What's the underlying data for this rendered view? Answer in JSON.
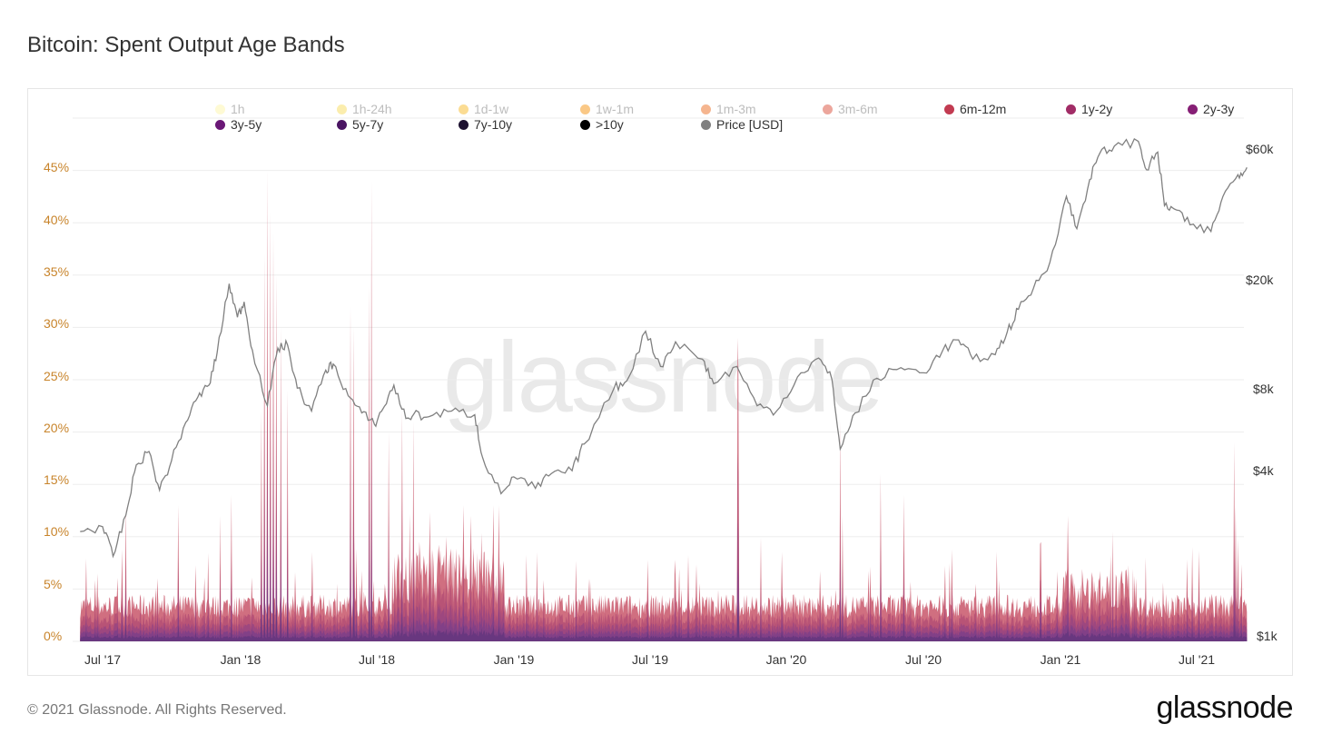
{
  "title": "Bitcoin: Spent Output Age Bands",
  "watermark": "glassnode",
  "footer": "© 2021 Glassnode. All Rights Reserved.",
  "brand": "glassnode",
  "legend": [
    {
      "label": "1h",
      "color": "#fdf6a9",
      "active": false
    },
    {
      "label": "1h-24h",
      "color": "#f8dc5c",
      "active": false
    },
    {
      "label": "1d-1w",
      "color": "#f7b928",
      "active": false
    },
    {
      "label": "1w-1m",
      "color": "#f6920e",
      "active": false
    },
    {
      "label": "1m-3m",
      "color": "#ec6b1f",
      "active": false
    },
    {
      "label": "3m-6m",
      "color": "#da4d3a",
      "active": false
    },
    {
      "label": "6m-12m",
      "color": "#c23b51",
      "active": true
    },
    {
      "label": "1y-2y",
      "color": "#a12c66",
      "active": true
    },
    {
      "label": "2y-3y",
      "color": "#861f75",
      "active": true
    },
    {
      "label": "3y-5y",
      "color": "#6a1876",
      "active": true
    },
    {
      "label": "5y-7y",
      "color": "#4a1562",
      "active": true
    },
    {
      "label": "7y-10y",
      "color": "#1d1130",
      "active": true
    },
    {
      "label": ">10y",
      "color": "#000000",
      "active": true
    },
    {
      "label": "Price [USD]",
      "color": "#808080",
      "active": true
    }
  ],
  "chart_data": {
    "type": "area",
    "title": "Bitcoin: Spent Output Age Bands",
    "x_ticks": [
      "Jul '17",
      "Jan '18",
      "Jul '18",
      "Jan '19",
      "Jul '19",
      "Jan '20",
      "Jul '20",
      "Jan '21",
      "Jul '21"
    ],
    "y_left_ticks": [
      "0%",
      "5%",
      "10%",
      "15%",
      "20%",
      "25%",
      "30%",
      "35%",
      "40%",
      "45%"
    ],
    "y_left_range": [
      0,
      50
    ],
    "y_right_ticks": [
      "$1k",
      "$4k",
      "$8k",
      "$20k",
      "$60k"
    ],
    "y_right_scale": "log",
    "grid": true,
    "legend_position": "top",
    "series": [
      {
        "name": "6m-12m",
        "color": "#c23b51"
      },
      {
        "name": "1y-2y",
        "color": "#a12c66"
      },
      {
        "name": "2y-3y",
        "color": "#861f75"
      },
      {
        "name": "3y-5y",
        "color": "#6a1876"
      },
      {
        "name": "5y-7y",
        "color": "#4a1562"
      },
      {
        "name": "7y-10y",
        "color": "#1d1130"
      },
      {
        "name": ">10y",
        "color": "#000000"
      }
    ],
    "price_usd": {
      "name": "Price [USD]",
      "color": "#808080",
      "points": [
        [
          "2017-06-01",
          2400
        ],
        [
          "2017-07-01",
          2500
        ],
        [
          "2017-07-15",
          1950
        ],
        [
          "2017-08-01",
          2750
        ],
        [
          "2017-08-15",
          4200
        ],
        [
          "2017-09-01",
          4700
        ],
        [
          "2017-09-15",
          3400
        ],
        [
          "2017-10-01",
          4350
        ],
        [
          "2017-10-20",
          6000
        ],
        [
          "2017-11-05",
          7400
        ],
        [
          "2017-11-20",
          8200
        ],
        [
          "2017-12-01",
          10800
        ],
        [
          "2017-12-17",
          19200
        ],
        [
          "2017-12-28",
          14500
        ],
        [
          "2018-01-06",
          16500
        ],
        [
          "2018-01-17",
          11000
        ],
        [
          "2018-02-06",
          6900
        ],
        [
          "2018-02-20",
          11200
        ],
        [
          "2018-03-05",
          11500
        ],
        [
          "2018-03-18",
          8000
        ],
        [
          "2018-04-06",
          6600
        ],
        [
          "2018-04-25",
          9300
        ],
        [
          "2018-05-05",
          9800
        ],
        [
          "2018-05-25",
          7500
        ],
        [
          "2018-06-12",
          6500
        ],
        [
          "2018-06-29",
          5900
        ],
        [
          "2018-07-10",
          6700
        ],
        [
          "2018-07-25",
          8200
        ],
        [
          "2018-08-10",
          6200
        ],
        [
          "2018-08-20",
          6400
        ],
        [
          "2018-09-10",
          6300
        ],
        [
          "2018-10-10",
          6600
        ],
        [
          "2018-11-10",
          6400
        ],
        [
          "2018-11-20",
          4500
        ],
        [
          "2018-12-15",
          3300
        ],
        [
          "2019-01-01",
          3800
        ],
        [
          "2019-01-30",
          3450
        ],
        [
          "2019-02-20",
          3900
        ],
        [
          "2019-03-20",
          4000
        ],
        [
          "2019-04-05",
          5000
        ],
        [
          "2019-05-15",
          8000
        ],
        [
          "2019-06-01",
          8500
        ],
        [
          "2019-06-26",
          12900
        ],
        [
          "2019-07-16",
          9600
        ],
        [
          "2019-08-05",
          11800
        ],
        [
          "2019-09-10",
          10200
        ],
        [
          "2019-09-25",
          8300
        ],
        [
          "2019-10-26",
          9600
        ],
        [
          "2019-11-22",
          6900
        ],
        [
          "2019-12-18",
          6600
        ],
        [
          "2020-01-15",
          8800
        ],
        [
          "2020-02-12",
          10300
        ],
        [
          "2020-03-01",
          8600
        ],
        [
          "2020-03-12",
          4800
        ],
        [
          "2020-04-01",
          6500
        ],
        [
          "2020-04-30",
          8700
        ],
        [
          "2020-06-01",
          9500
        ],
        [
          "2020-07-01",
          9100
        ],
        [
          "2020-07-27",
          11000
        ],
        [
          "2020-08-17",
          12000
        ],
        [
          "2020-09-05",
          10200
        ],
        [
          "2020-10-05",
          10600
        ],
        [
          "2020-10-21",
          12800
        ],
        [
          "2020-11-05",
          15500
        ],
        [
          "2020-11-25",
          18500
        ],
        [
          "2020-12-17",
          23000
        ],
        [
          "2021-01-08",
          40000
        ],
        [
          "2021-01-22",
          30500
        ],
        [
          "2021-02-08",
          46000
        ],
        [
          "2021-02-21",
          57000
        ],
        [
          "2021-03-13",
          61000
        ],
        [
          "2021-04-14",
          63500
        ],
        [
          "2021-04-25",
          50000
        ],
        [
          "2021-05-10",
          58000
        ],
        [
          "2021-05-19",
          37000
        ],
        [
          "2021-06-01",
          36000
        ],
        [
          "2021-06-22",
          31500
        ],
        [
          "2021-07-20",
          29800
        ],
        [
          "2021-08-05",
          40000
        ],
        [
          "2021-08-25",
          48000
        ],
        [
          "2021-09-06",
          51000
        ]
      ]
    }
  }
}
